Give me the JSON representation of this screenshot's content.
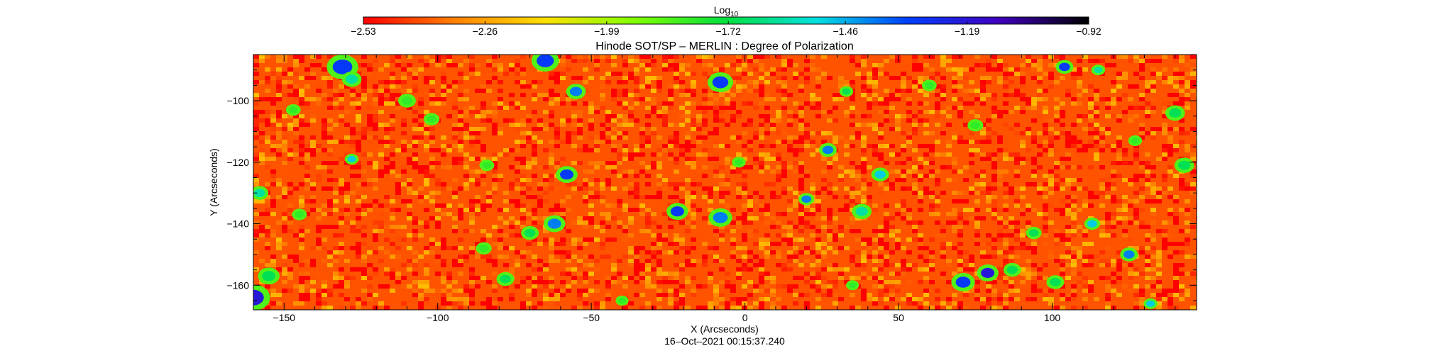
{
  "chart_data": {
    "type": "heatmap",
    "title": "Hinode SOT/SP – MERLIN : Degree of Polarization",
    "xlabel": "X (Arcseconds)",
    "ylabel": "Y (Arcseconds)",
    "footer": "16–Oct–2021 00:15:37.240",
    "xlim": [
      -160,
      147
    ],
    "ylim": [
      -168,
      -85
    ],
    "xticks": [
      {
        "value": -150,
        "label": "−150"
      },
      {
        "value": -100,
        "label": "−100"
      },
      {
        "value": -50,
        "label": "−50"
      },
      {
        "value": 0,
        "label": "0"
      },
      {
        "value": 50,
        "label": "50"
      },
      {
        "value": 100,
        "label": "100"
      }
    ],
    "yticks": [
      {
        "value": -100,
        "label": "−100"
      },
      {
        "value": -120,
        "label": "−120"
      },
      {
        "value": -140,
        "label": "−140"
      },
      {
        "value": -160,
        "label": "−160"
      }
    ],
    "grid": false,
    "colorbar": {
      "title_base": "Log",
      "title_sub": "10",
      "range": [
        -2.53,
        -0.92
      ],
      "ticks": [
        {
          "value": -2.53,
          "label": "−2.53"
        },
        {
          "value": -2.26,
          "label": "−2.26"
        },
        {
          "value": -1.99,
          "label": "−1.99"
        },
        {
          "value": -1.72,
          "label": "−1.72"
        },
        {
          "value": -1.46,
          "label": "−1.46"
        },
        {
          "value": -1.19,
          "label": "−1.19"
        },
        {
          "value": -0.92,
          "label": "−0.92"
        }
      ],
      "colors": [
        "#ff0000",
        "#ff8000",
        "#ffe000",
        "#80ff00",
        "#00e040",
        "#00e0e0",
        "#0040ff",
        "#4000c0",
        "#000000"
      ]
    },
    "background_level": -2.4,
    "features": [
      {
        "x": -131,
        "y": -89,
        "level": -1.3,
        "size": 3.2
      },
      {
        "x": -128,
        "y": -93,
        "level": -1.6,
        "size": 2.0
      },
      {
        "x": -65,
        "y": -87,
        "level": -1.3,
        "size": 2.8
      },
      {
        "x": -55,
        "y": -97,
        "level": -1.4,
        "size": 2.0
      },
      {
        "x": -8,
        "y": -94,
        "level": -1.3,
        "size": 2.6
      },
      {
        "x": -110,
        "y": -100,
        "level": -1.8,
        "size": 1.8
      },
      {
        "x": -102,
        "y": -106,
        "level": -1.8,
        "size": 1.6
      },
      {
        "x": -147,
        "y": -103,
        "level": -1.8,
        "size": 1.5
      },
      {
        "x": -84,
        "y": -121,
        "level": -1.8,
        "size": 1.5
      },
      {
        "x": -58,
        "y": -124,
        "level": -1.3,
        "size": 2.2
      },
      {
        "x": -2,
        "y": -120,
        "level": -1.8,
        "size": 1.4
      },
      {
        "x": 27,
        "y": -116,
        "level": -1.4,
        "size": 1.8
      },
      {
        "x": 44,
        "y": -124,
        "level": -1.5,
        "size": 1.8
      },
      {
        "x": 38,
        "y": -136,
        "level": -1.6,
        "size": 2.0
      },
      {
        "x": 20,
        "y": -132,
        "level": -1.4,
        "size": 1.6
      },
      {
        "x": -22,
        "y": -136,
        "level": -1.3,
        "size": 2.2
      },
      {
        "x": -8,
        "y": -138,
        "level": -1.4,
        "size": 2.4
      },
      {
        "x": -62,
        "y": -140,
        "level": -1.4,
        "size": 2.2
      },
      {
        "x": -70,
        "y": -143,
        "level": -1.7,
        "size": 1.8
      },
      {
        "x": -128,
        "y": -119,
        "level": -1.5,
        "size": 1.4
      },
      {
        "x": -158,
        "y": -130,
        "level": -1.6,
        "size": 1.8
      },
      {
        "x": -145,
        "y": -137,
        "level": -1.8,
        "size": 1.5
      },
      {
        "x": -160,
        "y": -164,
        "level": -1.2,
        "size": 3.4
      },
      {
        "x": -155,
        "y": -157,
        "level": -1.7,
        "size": 2.2
      },
      {
        "x": -85,
        "y": -148,
        "level": -1.8,
        "size": 1.6
      },
      {
        "x": -78,
        "y": -158,
        "level": -1.7,
        "size": 1.8
      },
      {
        "x": 71,
        "y": -159,
        "level": -1.3,
        "size": 2.4
      },
      {
        "x": 79,
        "y": -156,
        "level": -1.2,
        "size": 2.2
      },
      {
        "x": 87,
        "y": -155,
        "level": -1.7,
        "size": 1.8
      },
      {
        "x": 101,
        "y": -159,
        "level": -1.7,
        "size": 1.8
      },
      {
        "x": 125,
        "y": -150,
        "level": -1.4,
        "size": 1.8
      },
      {
        "x": 113,
        "y": -140,
        "level": -1.5,
        "size": 1.6
      },
      {
        "x": 94,
        "y": -143,
        "level": -1.7,
        "size": 1.6
      },
      {
        "x": 104,
        "y": -89,
        "level": -1.3,
        "size": 1.8
      },
      {
        "x": 115,
        "y": -90,
        "level": -1.6,
        "size": 1.4
      },
      {
        "x": 140,
        "y": -104,
        "level": -1.7,
        "size": 2.0
      },
      {
        "x": 143,
        "y": -121,
        "level": -1.7,
        "size": 2.0
      },
      {
        "x": 127,
        "y": -113,
        "level": -1.8,
        "size": 1.4
      },
      {
        "x": 75,
        "y": -108,
        "level": -1.8,
        "size": 1.6
      },
      {
        "x": 60,
        "y": -95,
        "level": -1.8,
        "size": 1.5
      },
      {
        "x": 33,
        "y": -97,
        "level": -1.7,
        "size": 1.4
      },
      {
        "x": 132,
        "y": -166,
        "level": -1.5,
        "size": 1.4
      },
      {
        "x": 35,
        "y": -160,
        "level": -1.8,
        "size": 1.3
      },
      {
        "x": -40,
        "y": -165,
        "level": -1.8,
        "size": 1.3
      }
    ]
  }
}
